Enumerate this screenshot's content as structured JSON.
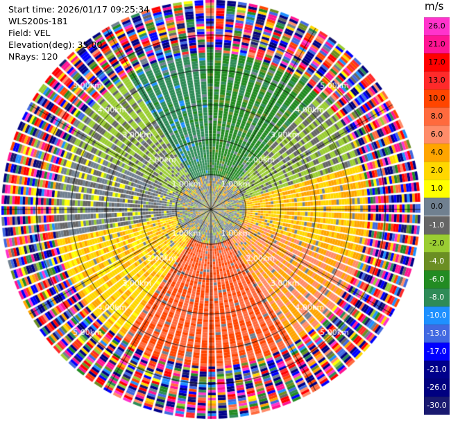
{
  "header": {
    "start_time": "Start time: 2026/01/17 09:25:34",
    "instrument": "WLS200s-181",
    "field": "Field: VEL",
    "elevation": "Elevation(deg): 35.00",
    "nrays": "NRays: 120"
  },
  "colorbar": {
    "title": "m/s",
    "labels": [
      "26.0",
      "21.0",
      "17.0",
      "13.0",
      "10.0",
      "8.0",
      "6.0",
      "4.0",
      "2.0",
      "1.0",
      "0.0",
      "-1.0",
      "-2.0",
      "-4.0",
      "-6.0",
      "-8.0",
      "-10.0",
      "-13.0",
      "-17.0",
      "-21.0",
      "-26.0",
      "-30.0"
    ],
    "colors": [
      "#ff33cc",
      "#ff1493",
      "#ff0000",
      "#ff2a2a",
      "#ff4500",
      "#ff6a3d",
      "#ff8c69",
      "#ffa500",
      "#ffd700",
      "#ffff00",
      "#708090",
      "#666666",
      "#9acd32",
      "#6b8e23",
      "#228b22",
      "#2e8b57",
      "#1e90ff",
      "#4169e1",
      "#0000ff",
      "#00008b",
      "#000080",
      "#191970"
    ]
  },
  "chart_data": {
    "type": "ppi",
    "field": "VEL",
    "units": "m/s",
    "nrays": 120,
    "range_rings_km": [
      1,
      2,
      3,
      4,
      5
    ],
    "ring_labels": [
      "1.00km",
      "2.00km",
      "3.00km",
      "4.00km",
      "5.00km"
    ],
    "max_range_km": 6,
    "valid_range_km": 4.5,
    "spoke_angles_deg": [
      0,
      30,
      60,
      90,
      120,
      150,
      180,
      210,
      240,
      270,
      300,
      330
    ],
    "sectors": [
      {
        "from_deg": 0,
        "to_deg": 45,
        "velocity": -6.0,
        "label": "green"
      },
      {
        "from_deg": 45,
        "to_deg": 75,
        "velocity": -2.0,
        "label": "light green"
      },
      {
        "from_deg": 75,
        "to_deg": 110,
        "velocity": 3.0,
        "label": "yellow"
      },
      {
        "from_deg": 110,
        "to_deg": 150,
        "velocity": 5.0,
        "label": "orange-yellow"
      },
      {
        "from_deg": 150,
        "to_deg": 215,
        "velocity": 9.0,
        "label": "salmon"
      },
      {
        "from_deg": 215,
        "to_deg": 260,
        "velocity": 2.5,
        "label": "yellow"
      },
      {
        "from_deg": 260,
        "to_deg": 295,
        "velocity": -0.5,
        "label": "grey"
      },
      {
        "from_deg": 295,
        "to_deg": 330,
        "velocity": -2.0,
        "label": "light green"
      },
      {
        "from_deg": 330,
        "to_deg": 360,
        "velocity": -8.0,
        "label": "blue-green"
      }
    ],
    "near_field_velocity": 0.0
  }
}
